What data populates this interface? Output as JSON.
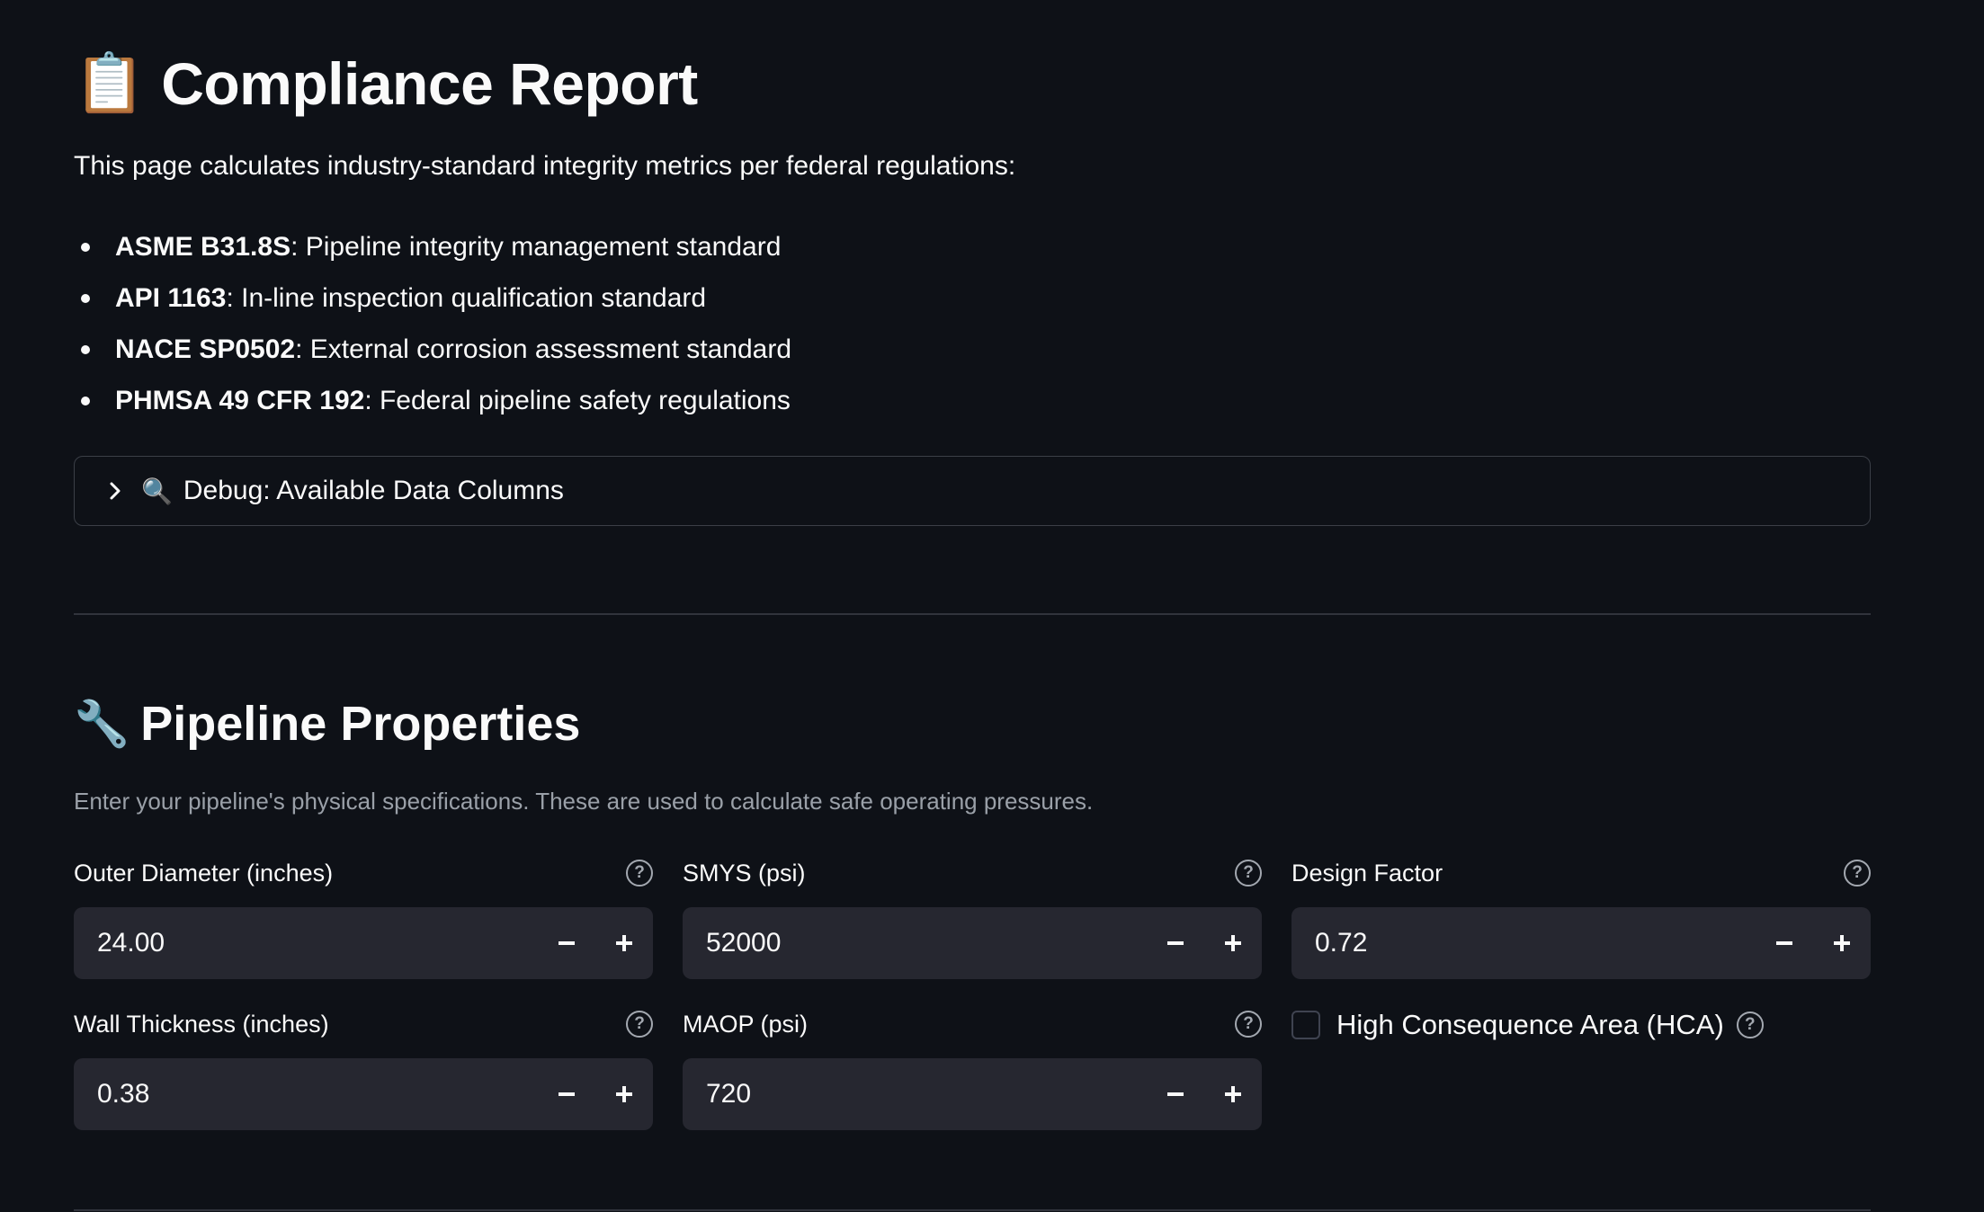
{
  "page": {
    "title_emoji": "📋",
    "title": "Compliance Report",
    "intro": "This page calculates industry-standard integrity metrics per federal regulations:"
  },
  "standards": [
    {
      "code": "ASME B31.8S",
      "desc": ": Pipeline integrity management standard"
    },
    {
      "code": "API 1163",
      "desc": ": In-line inspection qualification standard"
    },
    {
      "code": "NACE SP0502",
      "desc": ": External corrosion assessment standard"
    },
    {
      "code": "PHMSA 49 CFR 192",
      "desc": ": Federal pipeline safety regulations"
    }
  ],
  "expander": {
    "icon": "chevron-right-icon",
    "emoji": "🔍",
    "label": "Debug: Available Data Columns"
  },
  "section": {
    "emoji": "🔧",
    "title": "Pipeline Properties",
    "caption": "Enter your pipeline's physical specifications. These are used to calculate safe operating pressures."
  },
  "fields": {
    "outer_diameter": {
      "label": "Outer Diameter (inches)",
      "value": "24.00"
    },
    "smys": {
      "label": "SMYS (psi)",
      "value": "52000"
    },
    "design_factor": {
      "label": "Design Factor",
      "value": "0.72"
    },
    "wall_thickness": {
      "label": "Wall Thickness (inches)",
      "value": "0.38"
    },
    "maop": {
      "label": "MAOP (psi)",
      "value": "720"
    }
  },
  "hca": {
    "label": "High Consequence Area (HCA)",
    "checked": false
  },
  "help_glyph": "?",
  "colors": {
    "background": "#0e1117",
    "input_bg": "#262730",
    "text": "#fafafa",
    "muted": "#9aa0a8",
    "border": "#3b3f47"
  }
}
